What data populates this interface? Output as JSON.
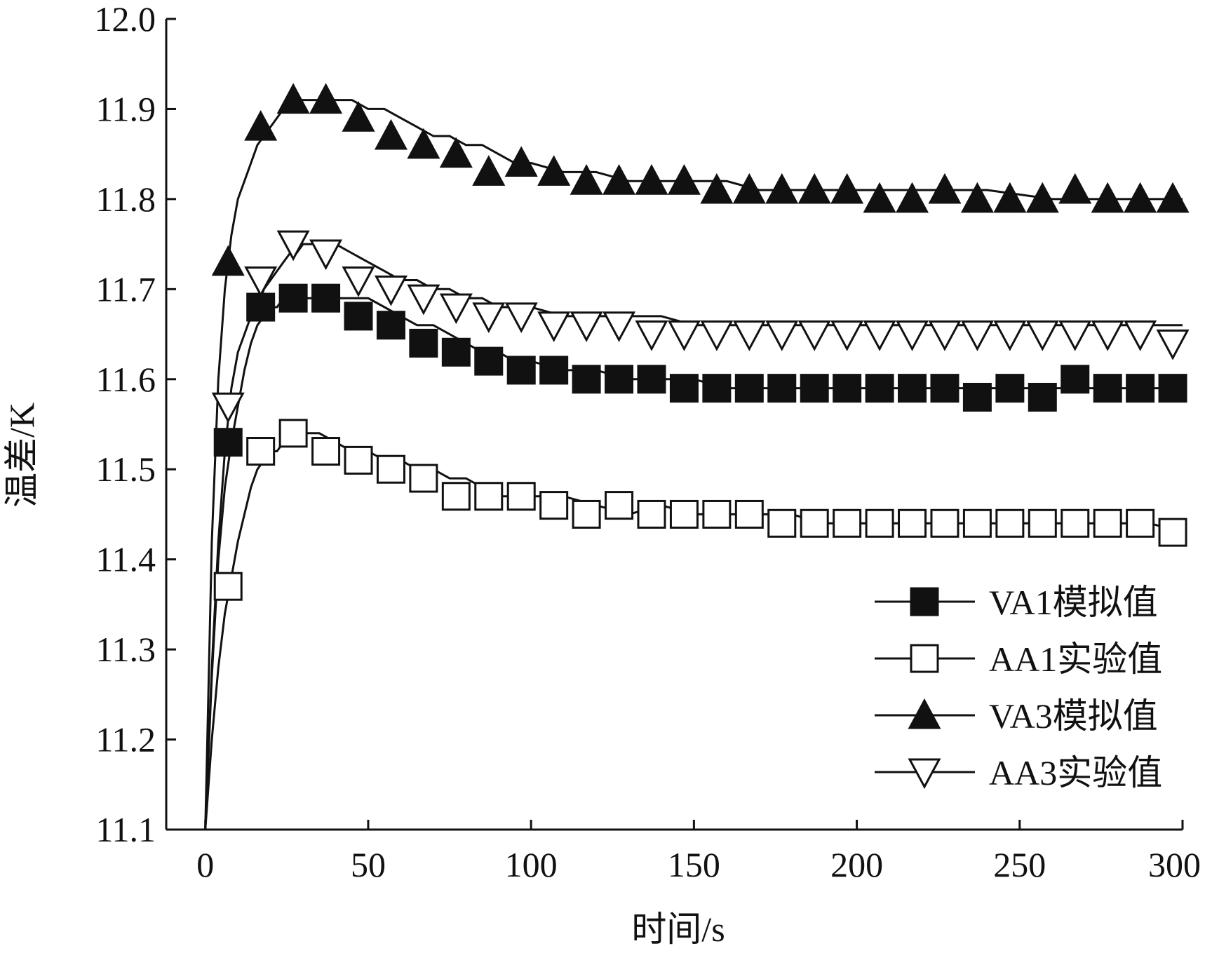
{
  "chart_data": {
    "type": "line",
    "title": "",
    "xlabel": "时间/s",
    "ylabel": "温差/K",
    "xlim": [
      -12,
      300
    ],
    "ylim": [
      11.1,
      12.0
    ],
    "x_ticks": [
      0,
      50,
      100,
      150,
      200,
      250,
      300
    ],
    "x_tick_labels": [
      "0",
      "50",
      "100",
      "150",
      "200",
      "250",
      "300"
    ],
    "y_ticks": [
      11.1,
      11.2,
      11.3,
      11.4,
      11.5,
      11.6,
      11.7,
      11.8,
      11.9,
      12.0
    ],
    "y_tick_labels": [
      "11.1",
      "11.2",
      "11.3",
      "11.4",
      "11.5",
      "11.6",
      "11.7",
      "11.8",
      "11.9",
      "12.0"
    ],
    "grid": false,
    "legend_position": "bottom-right",
    "series": [
      {
        "name": "VA1模拟值",
        "marker": "square-filled",
        "line_x": [
          0,
          2,
          4,
          6,
          8,
          10,
          12,
          14,
          16,
          18,
          20,
          22,
          24,
          26,
          28,
          30,
          35,
          40,
          45,
          50,
          55,
          60,
          65,
          70,
          75,
          80,
          85,
          90,
          95,
          100,
          110,
          120,
          130,
          140,
          150,
          160,
          170,
          180,
          190,
          200,
          220,
          240,
          260,
          280,
          300
        ],
        "line_y": [
          11.1,
          11.27,
          11.4,
          11.48,
          11.53,
          11.57,
          11.61,
          11.64,
          11.66,
          11.67,
          11.68,
          11.68,
          11.69,
          11.69,
          11.69,
          11.69,
          11.69,
          11.69,
          11.69,
          11.69,
          11.68,
          11.67,
          11.66,
          11.66,
          11.65,
          11.64,
          11.63,
          11.63,
          11.62,
          11.62,
          11.61,
          11.61,
          11.6,
          11.6,
          11.6,
          11.59,
          11.59,
          11.59,
          11.59,
          11.59,
          11.59,
          11.59,
          11.59,
          11.59,
          11.59
        ],
        "marker_x": [
          7,
          17,
          27,
          37,
          47,
          57,
          67,
          77,
          87,
          97,
          107,
          117,
          127,
          137,
          147,
          157,
          167,
          177,
          187,
          197,
          207,
          217,
          227,
          237,
          247,
          257,
          267,
          277,
          287,
          297
        ],
        "marker_y": [
          11.53,
          11.68,
          11.69,
          11.69,
          11.67,
          11.66,
          11.64,
          11.63,
          11.62,
          11.61,
          11.61,
          11.6,
          11.6,
          11.6,
          11.59,
          11.59,
          11.59,
          11.59,
          11.59,
          11.59,
          11.59,
          11.59,
          11.59,
          11.58,
          11.59,
          11.58,
          11.6,
          11.59,
          11.59,
          11.59
        ]
      },
      {
        "name": "AA1实验值",
        "marker": "square-open",
        "line_x": [
          0,
          2,
          4,
          6,
          8,
          10,
          12,
          14,
          16,
          18,
          20,
          22,
          24,
          26,
          28,
          30,
          35,
          40,
          45,
          50,
          55,
          60,
          65,
          70,
          75,
          80,
          85,
          90,
          100,
          110,
          120,
          130,
          140,
          150,
          160,
          170,
          180,
          190,
          200,
          220,
          240,
          260,
          280,
          290,
          300
        ],
        "line_y": [
          11.1,
          11.2,
          11.28,
          11.34,
          11.38,
          11.42,
          11.45,
          11.48,
          11.5,
          11.51,
          11.52,
          11.52,
          11.53,
          11.53,
          11.54,
          11.54,
          11.54,
          11.53,
          11.52,
          11.52,
          11.51,
          11.51,
          11.5,
          11.5,
          11.49,
          11.49,
          11.48,
          11.47,
          11.47,
          11.47,
          11.46,
          11.45,
          11.46,
          11.45,
          11.45,
          11.45,
          11.45,
          11.44,
          11.44,
          11.44,
          11.44,
          11.44,
          11.44,
          11.44,
          11.43
        ],
        "marker_x": [
          7,
          17,
          27,
          37,
          47,
          57,
          67,
          77,
          87,
          97,
          107,
          117,
          127,
          137,
          147,
          157,
          167,
          177,
          187,
          197,
          207,
          217,
          227,
          237,
          247,
          257,
          267,
          277,
          287,
          297
        ],
        "marker_y": [
          11.37,
          11.52,
          11.54,
          11.52,
          11.51,
          11.5,
          11.49,
          11.47,
          11.47,
          11.47,
          11.46,
          11.45,
          11.46,
          11.45,
          11.45,
          11.45,
          11.45,
          11.44,
          11.44,
          11.44,
          11.44,
          11.44,
          11.44,
          11.44,
          11.44,
          11.44,
          11.44,
          11.44,
          11.44,
          11.43
        ]
      },
      {
        "name": "VA3模拟值",
        "marker": "triangle-up-filled",
        "line_x": [
          0,
          2,
          4,
          6,
          8,
          10,
          12,
          14,
          16,
          18,
          20,
          22,
          24,
          26,
          28,
          30,
          35,
          40,
          45,
          50,
          55,
          60,
          65,
          70,
          75,
          80,
          85,
          90,
          95,
          100,
          110,
          120,
          130,
          140,
          150,
          160,
          170,
          180,
          190,
          200,
          220,
          240,
          260,
          280,
          300
        ],
        "line_y": [
          11.1,
          11.42,
          11.6,
          11.7,
          11.76,
          11.8,
          11.82,
          11.84,
          11.86,
          11.87,
          11.88,
          11.89,
          11.9,
          11.9,
          11.91,
          11.91,
          11.91,
          11.91,
          11.91,
          11.9,
          11.9,
          11.89,
          11.88,
          11.87,
          11.87,
          11.86,
          11.86,
          11.85,
          11.84,
          11.84,
          11.83,
          11.83,
          11.82,
          11.82,
          11.82,
          11.82,
          11.81,
          11.81,
          11.81,
          11.81,
          11.81,
          11.81,
          11.8,
          11.8,
          11.8
        ],
        "marker_x": [
          7,
          17,
          27,
          37,
          47,
          57,
          67,
          77,
          87,
          97,
          107,
          117,
          127,
          137,
          147,
          157,
          167,
          177,
          187,
          197,
          207,
          217,
          227,
          237,
          247,
          257,
          267,
          277,
          287,
          297
        ],
        "marker_y": [
          11.73,
          11.88,
          11.91,
          11.91,
          11.89,
          11.87,
          11.86,
          11.85,
          11.83,
          11.84,
          11.83,
          11.82,
          11.82,
          11.82,
          11.82,
          11.81,
          11.81,
          11.81,
          11.81,
          11.81,
          11.8,
          11.8,
          11.81,
          11.8,
          11.8,
          11.8,
          11.81,
          11.8,
          11.8,
          11.8
        ]
      },
      {
        "name": "AA3实验值",
        "marker": "triangle-down-open",
        "line_x": [
          0,
          2,
          4,
          6,
          8,
          10,
          12,
          14,
          16,
          18,
          20,
          22,
          24,
          26,
          28,
          30,
          35,
          40,
          45,
          50,
          55,
          60,
          65,
          70,
          75,
          80,
          85,
          90,
          100,
          110,
          120,
          130,
          140,
          150,
          160,
          170,
          180,
          190,
          200,
          220,
          240,
          260,
          280,
          300
        ],
        "line_y": [
          11.1,
          11.28,
          11.42,
          11.52,
          11.59,
          11.63,
          11.65,
          11.67,
          11.68,
          11.7,
          11.71,
          11.72,
          11.73,
          11.74,
          11.74,
          11.75,
          11.75,
          11.75,
          11.74,
          11.73,
          11.72,
          11.71,
          11.71,
          11.7,
          11.7,
          11.69,
          11.69,
          11.68,
          11.68,
          11.67,
          11.67,
          11.67,
          11.67,
          11.66,
          11.66,
          11.66,
          11.66,
          11.66,
          11.66,
          11.66,
          11.66,
          11.66,
          11.66,
          11.66
        ],
        "marker_x": [
          7,
          17,
          27,
          37,
          47,
          57,
          67,
          77,
          87,
          97,
          107,
          117,
          127,
          137,
          147,
          157,
          167,
          177,
          187,
          197,
          207,
          217,
          227,
          237,
          247,
          257,
          267,
          277,
          287,
          297
        ],
        "marker_y": [
          11.57,
          11.71,
          11.75,
          11.74,
          11.71,
          11.7,
          11.69,
          11.68,
          11.67,
          11.67,
          11.66,
          11.66,
          11.66,
          11.65,
          11.65,
          11.65,
          11.65,
          11.65,
          11.65,
          11.65,
          11.65,
          11.65,
          11.65,
          11.65,
          11.65,
          11.65,
          11.65,
          11.65,
          11.65,
          11.64
        ]
      }
    ]
  }
}
